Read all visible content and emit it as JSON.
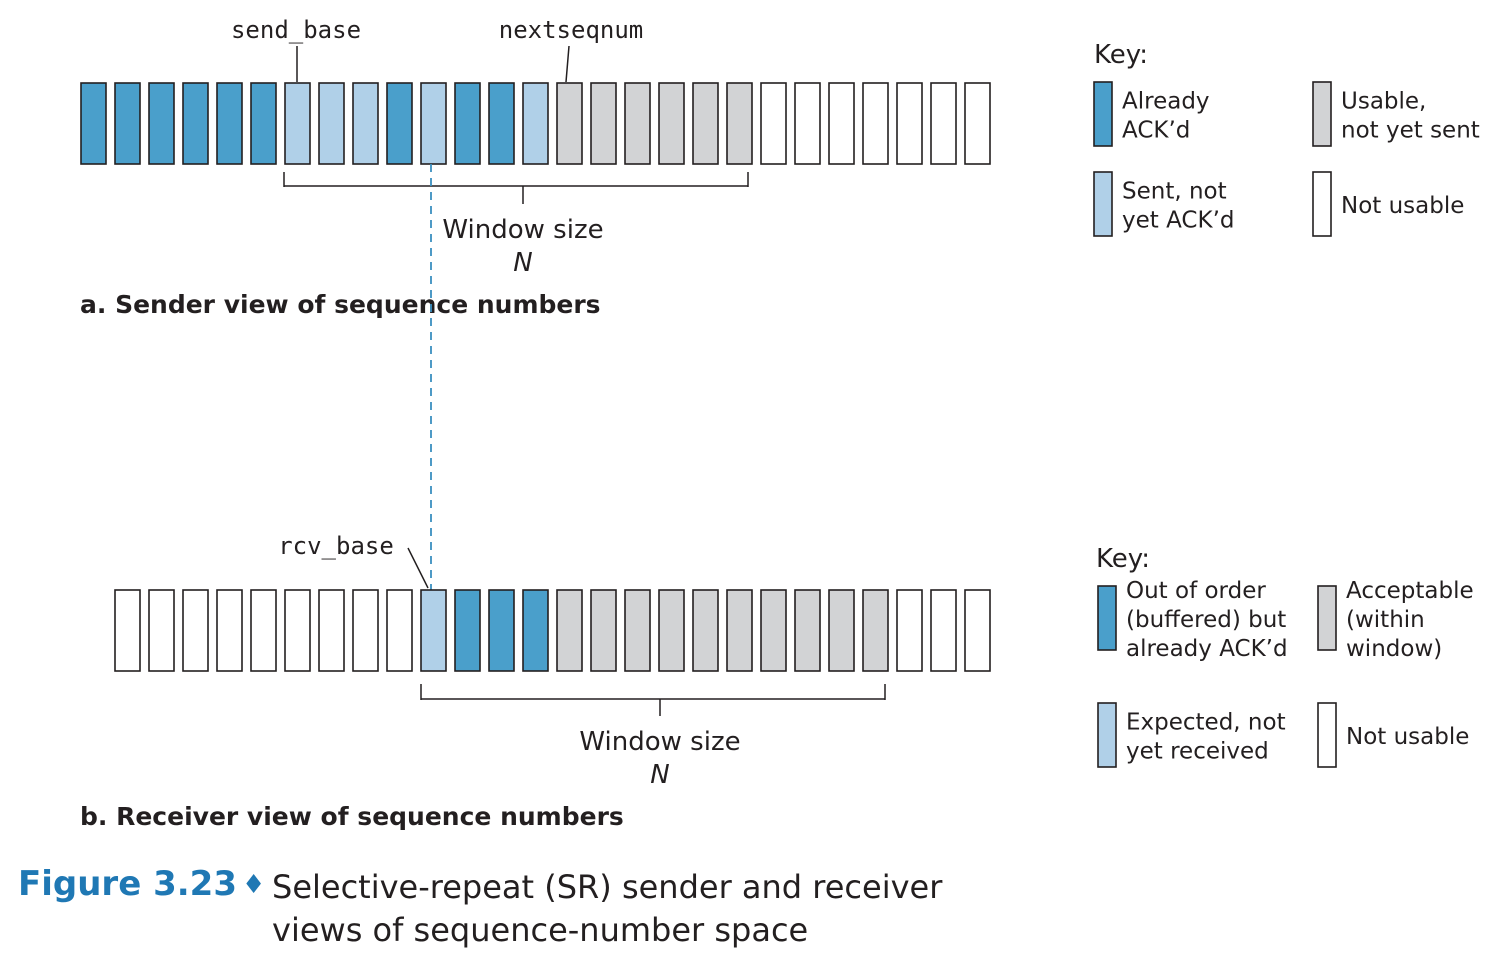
{
  "colors": {
    "acked": "#4a9fcb",
    "sent_not_acked": "#b0d0e8",
    "usable": "#d2d3d5",
    "not_usable": "#ffffff",
    "stroke": "#231f20",
    "dashed": "#3a8fc0",
    "accent": "#1f78b4"
  },
  "sender": {
    "caption": "a. Sender view of sequence numbers",
    "pointer_send_base": "send_base",
    "pointer_nextseqnum": "nextseqnum",
    "window_label": "Window size",
    "window_var": "N",
    "cells": [
      "acked",
      "acked",
      "acked",
      "acked",
      "acked",
      "acked",
      "sent",
      "sent",
      "sent",
      "acked",
      "sent",
      "acked",
      "acked",
      "sent",
      "usable",
      "usable",
      "usable",
      "usable",
      "usable",
      "usable",
      "empty",
      "empty",
      "empty",
      "empty",
      "empty",
      "empty",
      "empty"
    ],
    "send_base_index": 6,
    "nextseqnum_index": 14,
    "window_start_index": 6,
    "window_length": 14
  },
  "receiver": {
    "caption": "b. Receiver view of sequence numbers",
    "pointer_rcv_base": "rcv_base",
    "window_label": "Window size",
    "window_var": "N",
    "cells": [
      "empty",
      "empty",
      "empty",
      "empty",
      "empty",
      "empty",
      "empty",
      "empty",
      "empty",
      "expected",
      "ooo",
      "ooo",
      "ooo",
      "acceptable",
      "acceptable",
      "acceptable",
      "acceptable",
      "acceptable",
      "acceptable",
      "acceptable",
      "acceptable",
      "acceptable",
      "acceptable",
      "empty",
      "empty",
      "empty"
    ],
    "rcv_base_index": 9,
    "window_start_index": 9,
    "window_length": 14
  },
  "sender_key": {
    "title": "Key:",
    "items": [
      {
        "type": "acked",
        "lines": [
          "Already",
          "ACK’d"
        ]
      },
      {
        "type": "usable",
        "lines": [
          "Usable,",
          "not yet sent"
        ]
      },
      {
        "type": "sent",
        "lines": [
          "Sent, not",
          "yet ACK’d"
        ]
      },
      {
        "type": "empty",
        "lines": [
          "Not usable"
        ]
      }
    ]
  },
  "receiver_key": {
    "title": "Key:",
    "items": [
      {
        "type": "ooo",
        "lines": [
          "Out of order",
          "(buffered) but",
          "already ACK’d"
        ]
      },
      {
        "type": "acceptable",
        "lines": [
          "Acceptable",
          "(within",
          "window)"
        ]
      },
      {
        "type": "expected",
        "lines": [
          "Expected, not",
          "yet received"
        ]
      },
      {
        "type": "empty",
        "lines": [
          "Not usable"
        ]
      }
    ]
  },
  "figure_caption": {
    "label": "Figure 3.23",
    "diamond": "♦",
    "text": "Selective-repeat (SR) sender and receiver views of sequence-number space"
  }
}
